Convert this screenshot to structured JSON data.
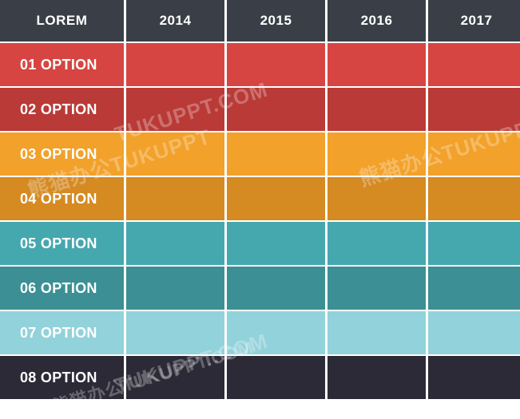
{
  "header": {
    "corner_label": "LOREM",
    "years": [
      "2014",
      "2015",
      "2016",
      "2017"
    ]
  },
  "rows": [
    {
      "label": "01 OPTION",
      "color": "#d64541"
    },
    {
      "label": "02 OPTION",
      "color": "#b93a36"
    },
    {
      "label": "03 OPTION",
      "color": "#f2a12a"
    },
    {
      "label": "04 OPTION",
      "color": "#d58a22"
    },
    {
      "label": "05 OPTION",
      "color": "#45a8ae"
    },
    {
      "label": "06 OPTION",
      "color": "#3c9095"
    },
    {
      "label": "07 OPTION",
      "color": "#92d2da"
    },
    {
      "label": "08 OPTION",
      "color": "#2b2a36"
    }
  ],
  "colors": {
    "header_bg": "#3a3f47",
    "grid_line": "#ffffff"
  },
  "watermarks": [
    "TUKUPPT.COM",
    "熊猫办公TUKUPPT",
    "熊猫办公TUKUPPT",
    "TUKUPPT.COM",
    "熊猫办公TUKUPPT.COM"
  ]
}
